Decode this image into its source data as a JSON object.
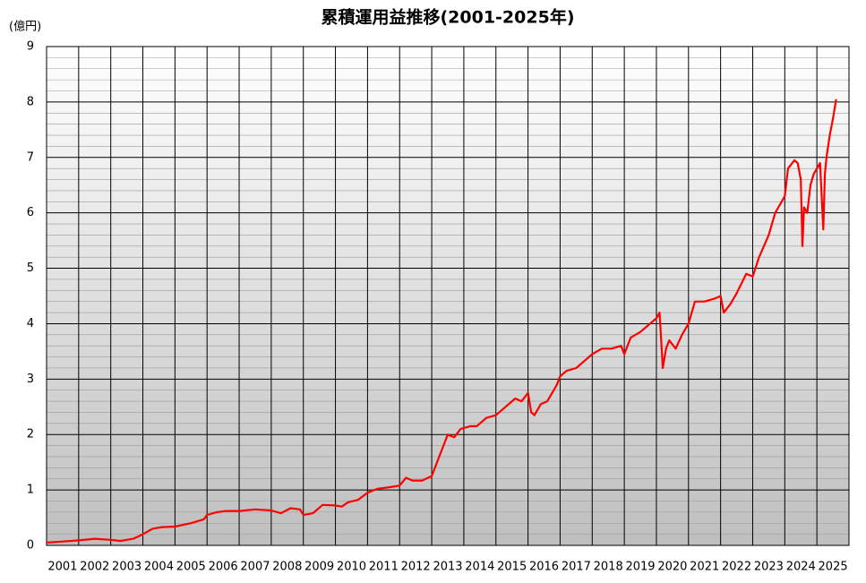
{
  "chart_data": {
    "type": "line",
    "title": "累積運用益推移(2001-2025年)",
    "y_label": "(億円)",
    "x": [
      2001.0,
      2001.5,
      2002.0,
      2002.5,
      2003.0,
      2003.3,
      2003.7,
      2004.0,
      2004.3,
      2004.6,
      2005.0,
      2005.5,
      2005.9,
      2006.0,
      2006.3,
      2006.6,
      2007.0,
      2007.5,
      2008.0,
      2008.3,
      2008.6,
      2008.9,
      2009.0,
      2009.3,
      2009.6,
      2010.0,
      2010.2,
      2010.4,
      2010.7,
      2011.0,
      2011.3,
      2011.7,
      2012.0,
      2012.2,
      2012.4,
      2012.7,
      2013.0,
      2013.2,
      2013.4,
      2013.5,
      2013.7,
      2013.9,
      2014.2,
      2014.4,
      2014.7,
      2015.0,
      2015.3,
      2015.6,
      2015.8,
      2016.0,
      2016.1,
      2016.2,
      2016.4,
      2016.6,
      2016.9,
      2017.0,
      2017.2,
      2017.5,
      2017.8,
      2018.0,
      2018.3,
      2018.6,
      2018.9,
      2019.0,
      2019.2,
      2019.5,
      2019.8,
      2020.0,
      2020.1,
      2020.2,
      2020.3,
      2020.4,
      2020.6,
      2020.8,
      2021.0,
      2021.2,
      2021.5,
      2021.8,
      2022.0,
      2022.1,
      2022.3,
      2022.5,
      2022.8,
      2023.0,
      2023.2,
      2023.5,
      2023.7,
      2023.8,
      2024.0,
      2024.1,
      2024.3,
      2024.4,
      2024.5,
      2024.55,
      2024.6,
      2024.7,
      2024.8,
      2024.9,
      2025.0,
      2025.1,
      2025.2,
      2025.25,
      2025.3,
      2025.4,
      2025.5,
      2025.6
    ],
    "series": [
      {
        "name": "累積運用益",
        "color": "#ff0000",
        "values": [
          0.05,
          0.07,
          0.09,
          0.12,
          0.1,
          0.08,
          0.12,
          0.2,
          0.3,
          0.33,
          0.34,
          0.4,
          0.47,
          0.55,
          0.6,
          0.62,
          0.62,
          0.65,
          0.63,
          0.58,
          0.67,
          0.65,
          0.55,
          0.58,
          0.73,
          0.72,
          0.7,
          0.78,
          0.82,
          0.95,
          1.02,
          1.05,
          1.08,
          1.22,
          1.17,
          1.17,
          1.25,
          1.55,
          1.85,
          2.0,
          1.95,
          2.1,
          2.15,
          2.15,
          2.3,
          2.35,
          2.5,
          2.65,
          2.6,
          2.75,
          2.4,
          2.35,
          2.55,
          2.6,
          2.9,
          3.05,
          3.15,
          3.2,
          3.35,
          3.45,
          3.55,
          3.55,
          3.6,
          3.45,
          3.75,
          3.85,
          4.0,
          4.1,
          4.2,
          3.2,
          3.55,
          3.7,
          3.55,
          3.8,
          4.0,
          4.4,
          4.4,
          4.45,
          4.5,
          4.2,
          4.35,
          4.55,
          4.9,
          4.85,
          5.2,
          5.6,
          6.0,
          6.1,
          6.3,
          6.8,
          6.95,
          6.9,
          6.6,
          5.4,
          6.1,
          6.0,
          6.5,
          6.7,
          6.8,
          6.9,
          5.7,
          6.7,
          7.0,
          7.4,
          7.7,
          8.05
        ]
      }
    ],
    "xlim": [
      2001,
      2026
    ],
    "xticks": [
      2001,
      2002,
      2003,
      2004,
      2005,
      2006,
      2007,
      2008,
      2009,
      2010,
      2011,
      2012,
      2013,
      2014,
      2015,
      2016,
      2017,
      2018,
      2019,
      2020,
      2021,
      2022,
      2023,
      2024,
      2025
    ],
    "ylim": [
      0,
      9
    ],
    "yticks": [
      0,
      1,
      2,
      3,
      4,
      5,
      6,
      7,
      8,
      9
    ],
    "grid": true
  }
}
